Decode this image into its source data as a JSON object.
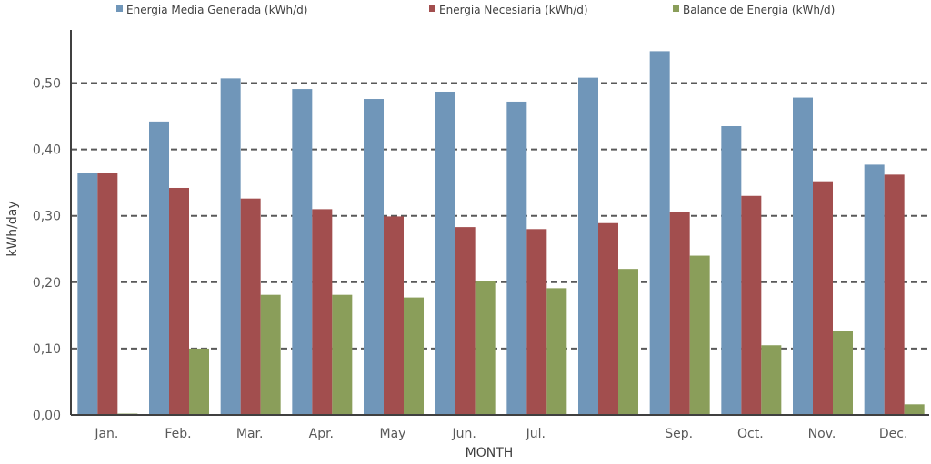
{
  "chart_data": {
    "type": "bar",
    "xlabel": "MONTH",
    "ylabel": "kWh/day",
    "ylim": [
      0,
      0.58
    ],
    "yticks": [
      "0,00",
      "0,10",
      "0,20",
      "0,30",
      "0,40",
      "0,50"
    ],
    "grid": true,
    "legend_position": "top",
    "categories": [
      "Jan.",
      "Feb.",
      "Mar.",
      "Apr.",
      "May",
      "Jun.",
      "Jul.",
      "",
      "Sep.",
      "Oct.",
      "Nov.",
      "Dec."
    ],
    "series": [
      {
        "name": "Energia Media Generada (kWh/d)",
        "color": "#7096b9",
        "values": [
          0.364,
          0.442,
          0.507,
          0.491,
          0.476,
          0.487,
          0.472,
          0.508,
          0.548,
          0.435,
          0.478,
          0.377
        ]
      },
      {
        "name": "Energia Necesiaria (kWh/d)",
        "color": "#a24e4e",
        "values": [
          0.364,
          0.342,
          0.326,
          0.31,
          0.299,
          0.283,
          0.28,
          0.289,
          0.306,
          0.33,
          0.352,
          0.362
        ]
      },
      {
        "name": "Balance de Energia (kWh/d)",
        "color": "#8a9e5a",
        "values": [
          0.002,
          0.1,
          0.181,
          0.181,
          0.177,
          0.202,
          0.191,
          0.22,
          0.24,
          0.105,
          0.126,
          0.016
        ]
      }
    ]
  }
}
